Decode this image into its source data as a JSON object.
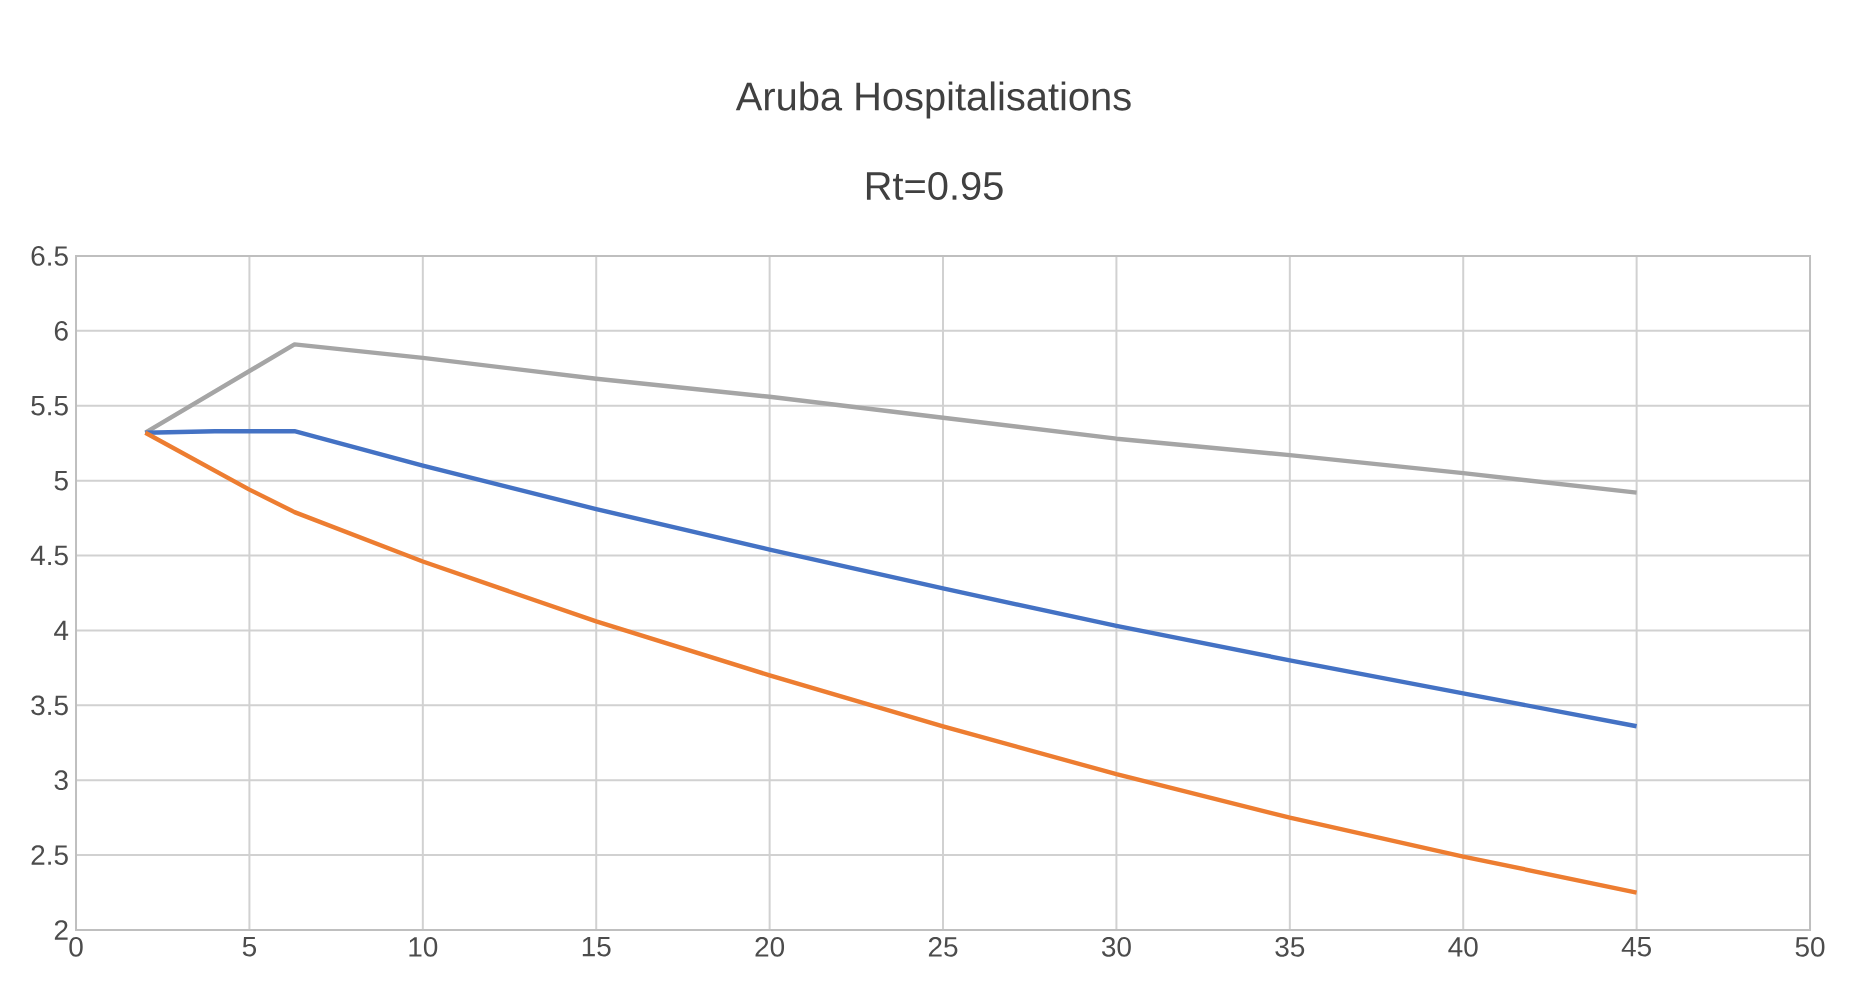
{
  "chart_data": {
    "type": "line",
    "title": "Aruba  Hospitalisations",
    "subtitle": "Rt=0.95",
    "xlim": [
      0,
      50
    ],
    "xticks": [
      0,
      5,
      10,
      15,
      20,
      25,
      30,
      35,
      40,
      45,
      50
    ],
    "ylim": [
      2,
      6.5
    ],
    "yticks": [
      2,
      2.5,
      3,
      3.5,
      4,
      4.5,
      5,
      5.5,
      6,
      6.5
    ],
    "grid": true,
    "marker": "none",
    "line_style": "solid",
    "series": [
      {
        "color": "#a5a5a5",
        "x": [
          2,
          6.3,
          10,
          15,
          20,
          25,
          30,
          35,
          40,
          45
        ],
        "values": [
          5.32,
          5.91,
          5.82,
          5.68,
          5.56,
          5.42,
          5.28,
          5.17,
          5.05,
          4.92
        ]
      },
      {
        "color": "#4472c4",
        "x": [
          2,
          4,
          6.3,
          10,
          15,
          20,
          25,
          30,
          35,
          40,
          45
        ],
        "values": [
          5.32,
          5.33,
          5.33,
          5.1,
          4.81,
          4.54,
          4.28,
          4.03,
          3.8,
          3.58,
          3.36
        ]
      },
      {
        "color": "#ed7d31",
        "x": [
          2,
          5,
          6.3,
          10,
          15,
          20,
          25,
          30,
          35,
          40,
          45
        ],
        "values": [
          5.32,
          4.94,
          4.79,
          4.46,
          4.06,
          3.7,
          3.36,
          3.04,
          2.75,
          2.49,
          2.25
        ]
      }
    ]
  }
}
